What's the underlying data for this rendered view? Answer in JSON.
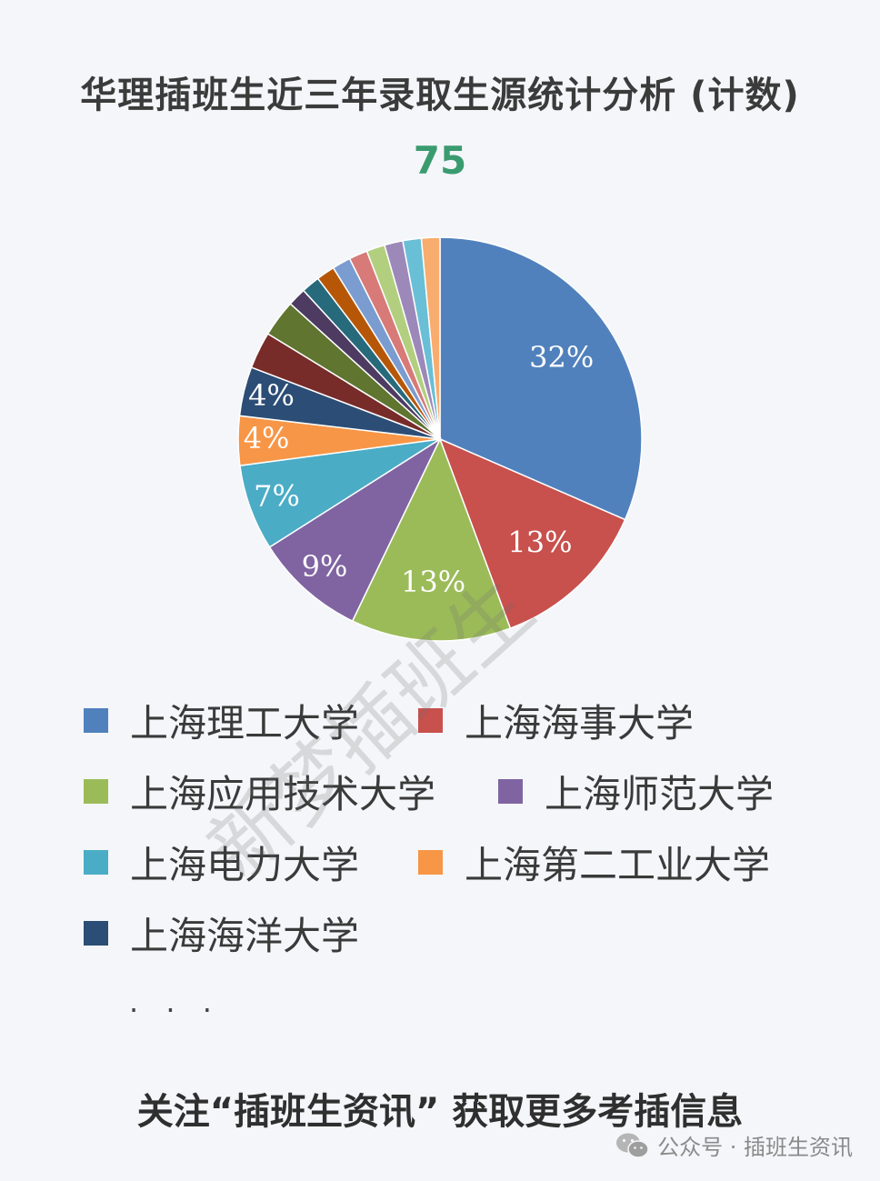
{
  "header": {
    "title": "华理插班生近三年录取生源统计分析 (计数)",
    "total": "75"
  },
  "chart_data": {
    "type": "pie",
    "title": "华理插班生近三年录取生源统计分析 (计数)",
    "total": 75,
    "series": [
      {
        "name": "上海理工大学",
        "percent": 32,
        "label": "32%",
        "color": "#5181bd"
      },
      {
        "name": "上海海事大学",
        "percent": 13,
        "label": "13%",
        "color": "#c8504d"
      },
      {
        "name": "上海应用技术大学",
        "percent": 13,
        "label": "13%",
        "color": "#9bbb59"
      },
      {
        "name": "上海师范大学",
        "percent": 9,
        "label": "9%",
        "color": "#8064a2"
      },
      {
        "name": "上海电力大学",
        "percent": 7,
        "label": "7%",
        "color": "#4bacc6"
      },
      {
        "name": "上海第二工业大学",
        "percent": 4,
        "label": "4%",
        "color": "#f79646"
      },
      {
        "name": "上海海洋大学",
        "percent": 4,
        "label": "4%",
        "color": "#2c4d75"
      },
      {
        "percent": 3,
        "color": "#772c2a"
      },
      {
        "percent": 3,
        "color": "#5f7530"
      },
      {
        "percent": 1.5,
        "color": "#4d3b62"
      },
      {
        "percent": 1.5,
        "color": "#276a7c"
      },
      {
        "percent": 1.5,
        "color": "#b65708"
      },
      {
        "percent": 1.5,
        "color": "#7a9cd0"
      },
      {
        "percent": 1.5,
        "color": "#d77a78"
      },
      {
        "percent": 1.5,
        "color": "#b2cf7f"
      },
      {
        "percent": 1.5,
        "color": "#9d88ba"
      },
      {
        "percent": 1.5,
        "color": "#69bfd6"
      },
      {
        "percent": 1.5,
        "color": "#f8ac6d"
      }
    ],
    "legend_position": "bottom",
    "legend_more": "· · ·"
  },
  "watermark": "新梦插班生",
  "footer": {
    "cta": "关注“插班生资讯” 获取更多考插信息",
    "source": "公众号 · 插班生资讯"
  }
}
